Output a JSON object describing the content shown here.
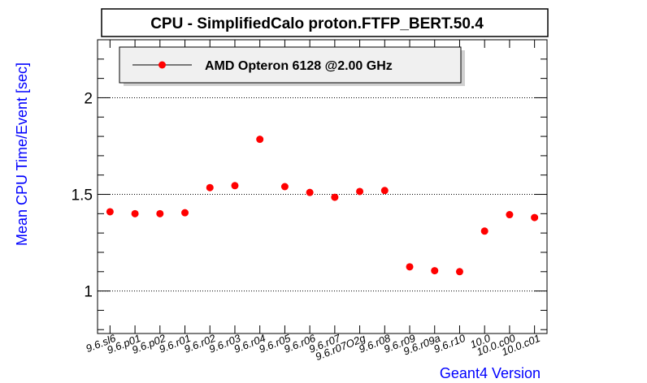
{
  "chart_data": {
    "type": "scatter",
    "title": "CPU - SimplifiedCalo proton.FTFP_BERT.50.4",
    "xlabel": "Geant4 Version",
    "ylabel": "Mean CPU Time/Event [sec]",
    "ylim": [
      0.78,
      2.3
    ],
    "yticks": [
      "1",
      "1.5",
      "2"
    ],
    "grid": "horizontal dotted at major y ticks",
    "legend_placement": "top-left",
    "categories": [
      "9.6.sl6",
      "9.6.p01",
      "9.6.p02",
      "9.6.r01",
      "9.6.r02",
      "9.6.r03",
      "9.6.r04",
      "9.6.r05",
      "9.6.r06",
      "9.6.r07",
      "9.6.r07O2g",
      "9.6.r08",
      "9.6.r09",
      "9.6.r09a",
      "9.6.r10",
      "10.0",
      "10.0.c00",
      "10.0.c01"
    ],
    "series": [
      {
        "name": "AMD Opteron 6128 @2.00 GHz",
        "color": "#ff0000",
        "values": [
          1.41,
          1.4,
          1.4,
          1.405,
          1.535,
          1.545,
          1.785,
          1.54,
          1.51,
          1.485,
          1.515,
          1.52,
          1.125,
          1.105,
          1.1,
          1.31,
          1.395,
          1.38
        ]
      }
    ]
  },
  "colors": {
    "axis_label": "#0000ff",
    "marker": "#ff0000",
    "legend_bg": "#f0f0f0"
  }
}
